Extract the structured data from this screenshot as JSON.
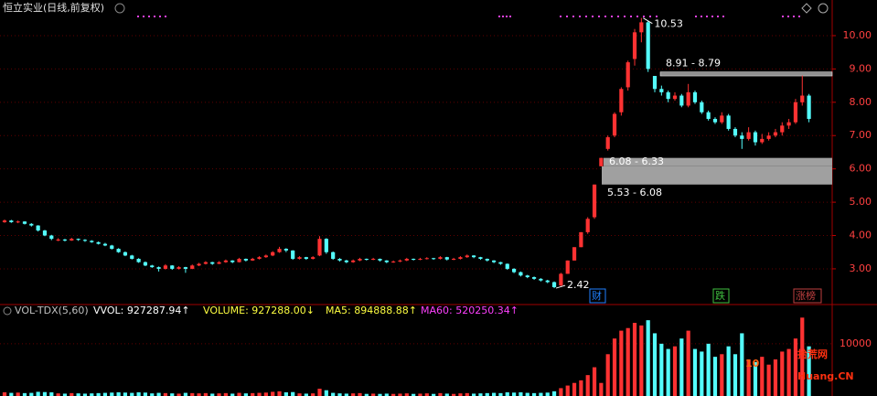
{
  "chart_data": {
    "type": "candlestick",
    "title": "恒立实业(日线,前复权)",
    "ylim": [
      2.01,
      11.07
    ],
    "yticks": [
      {
        "value": 3,
        "label": "3.00"
      },
      {
        "value": 4,
        "label": "4.00"
      },
      {
        "value": 5,
        "label": "5.00"
      },
      {
        "value": 6,
        "label": "6.00"
      },
      {
        "value": 7,
        "label": "7.00"
      },
      {
        "value": 8,
        "label": "8.00"
      },
      {
        "value": 9,
        "label": "9.00"
      },
      {
        "value": 10,
        "label": "10.00"
      }
    ],
    "grid": true,
    "up_color": "#ff3232",
    "down_color": "#54fcfc",
    "max_label": "10.53",
    "min_label": "2.42",
    "zones": [
      {
        "label": "8.91 - 8.79",
        "low": 8.79,
        "high": 8.91
      },
      {
        "label": "6.08 - 6.33",
        "low": 6.08,
        "high": 6.33
      },
      {
        "label": "5.53 - 6.08",
        "low": 5.53,
        "high": 6.08
      }
    ],
    "tags": [
      {
        "text": "财",
        "color": "#2080ff"
      },
      {
        "text": "跌",
        "color": "#40c040"
      },
      {
        "text": "涨榜",
        "color": "#c04040"
      }
    ],
    "candles": [
      [
        4.4,
        4.48,
        4.38,
        4.45
      ],
      [
        4.45,
        4.47,
        4.38,
        4.4
      ],
      [
        4.4,
        4.45,
        4.37,
        4.42
      ],
      [
        4.42,
        4.43,
        4.33,
        4.35
      ],
      [
        4.35,
        4.37,
        4.27,
        4.3
      ],
      [
        4.3,
        4.31,
        4.12,
        4.15
      ],
      [
        4.15,
        4.17,
        3.98,
        4.0
      ],
      [
        4.0,
        4.02,
        3.86,
        3.9
      ],
      [
        3.85,
        3.92,
        3.83,
        3.88
      ],
      [
        3.88,
        3.9,
        3.82,
        3.85
      ],
      [
        3.85,
        3.93,
        3.84,
        3.9
      ],
      [
        3.9,
        3.91,
        3.84,
        3.87
      ],
      [
        3.87,
        3.89,
        3.81,
        3.84
      ],
      [
        3.84,
        3.86,
        3.78,
        3.8
      ],
      [
        3.8,
        3.82,
        3.73,
        3.75
      ],
      [
        3.75,
        3.78,
        3.68,
        3.7
      ],
      [
        3.7,
        3.72,
        3.58,
        3.6
      ],
      [
        3.6,
        3.62,
        3.48,
        3.5
      ],
      [
        3.5,
        3.52,
        3.38,
        3.4
      ],
      [
        3.4,
        3.42,
        3.28,
        3.3
      ],
      [
        3.3,
        3.32,
        3.18,
        3.2
      ],
      [
        3.2,
        3.22,
        3.08,
        3.1
      ],
      [
        3.1,
        3.12,
        3.03,
        3.05
      ],
      [
        3.05,
        3.07,
        2.92,
        3.0
      ],
      [
        3.0,
        3.14,
        2.98,
        3.1
      ],
      [
        3.1,
        3.11,
        2.97,
        3.0
      ],
      [
        3.0,
        3.08,
        2.98,
        3.05
      ],
      [
        3.05,
        3.06,
        2.88,
        3.0
      ],
      [
        3.0,
        3.13,
        2.99,
        3.1
      ],
      [
        3.1,
        3.18,
        3.08,
        3.15
      ],
      [
        3.15,
        3.23,
        3.13,
        3.2
      ],
      [
        3.2,
        3.21,
        3.12,
        3.15
      ],
      [
        3.15,
        3.23,
        3.14,
        3.2
      ],
      [
        3.2,
        3.28,
        3.18,
        3.25
      ],
      [
        3.25,
        3.26,
        3.17,
        3.2
      ],
      [
        3.2,
        3.33,
        3.19,
        3.3
      ],
      [
        3.3,
        3.31,
        3.22,
        3.25
      ],
      [
        3.25,
        3.33,
        3.24,
        3.3
      ],
      [
        3.3,
        3.38,
        3.28,
        3.35
      ],
      [
        3.35,
        3.43,
        3.33,
        3.4
      ],
      [
        3.4,
        3.53,
        3.38,
        3.5
      ],
      [
        3.5,
        3.66,
        3.48,
        3.6
      ],
      [
        3.6,
        3.62,
        3.5,
        3.55
      ],
      [
        3.55,
        3.56,
        3.27,
        3.3
      ],
      [
        3.3,
        3.38,
        3.28,
        3.35
      ],
      [
        3.35,
        3.36,
        3.27,
        3.3
      ],
      [
        3.3,
        3.38,
        3.28,
        3.35
      ],
      [
        3.4,
        3.98,
        3.38,
        3.9
      ],
      [
        3.9,
        3.92,
        3.45,
        3.5
      ],
      [
        3.5,
        3.52,
        3.27,
        3.3
      ],
      [
        3.3,
        3.32,
        3.22,
        3.25
      ],
      [
        3.25,
        3.27,
        3.17,
        3.2
      ],
      [
        3.2,
        3.28,
        3.18,
        3.25
      ],
      [
        3.25,
        3.33,
        3.23,
        3.3
      ],
      [
        3.3,
        3.31,
        3.25,
        3.28
      ],
      [
        3.28,
        3.33,
        3.26,
        3.3
      ],
      [
        3.3,
        3.31,
        3.22,
        3.25
      ],
      [
        3.25,
        3.26,
        3.17,
        3.2
      ],
      [
        3.2,
        3.25,
        3.18,
        3.22
      ],
      [
        3.22,
        3.28,
        3.2,
        3.25
      ],
      [
        3.25,
        3.33,
        3.23,
        3.3
      ],
      [
        3.3,
        3.31,
        3.25,
        3.28
      ],
      [
        3.28,
        3.33,
        3.26,
        3.3
      ],
      [
        3.3,
        3.35,
        3.28,
        3.32
      ],
      [
        3.32,
        3.33,
        3.27,
        3.3
      ],
      [
        3.3,
        3.38,
        3.28,
        3.35
      ],
      [
        3.35,
        3.36,
        3.25,
        3.28
      ],
      [
        3.28,
        3.33,
        3.26,
        3.3
      ],
      [
        3.3,
        3.38,
        3.28,
        3.35
      ],
      [
        3.35,
        3.43,
        3.33,
        3.4
      ],
      [
        3.4,
        3.41,
        3.32,
        3.35
      ],
      [
        3.35,
        3.36,
        3.27,
        3.3
      ],
      [
        3.3,
        3.31,
        3.22,
        3.25
      ],
      [
        3.25,
        3.26,
        3.17,
        3.2
      ],
      [
        3.2,
        3.21,
        3.12,
        3.15
      ],
      [
        3.15,
        3.16,
        2.97,
        3.0
      ],
      [
        3.0,
        3.02,
        2.87,
        2.9
      ],
      [
        2.9,
        2.92,
        2.77,
        2.8
      ],
      [
        2.8,
        2.82,
        2.72,
        2.75
      ],
      [
        2.75,
        2.77,
        2.67,
        2.7
      ],
      [
        2.7,
        2.72,
        2.62,
        2.65
      ],
      [
        2.65,
        2.67,
        2.57,
        2.6
      ],
      [
        2.6,
        2.62,
        2.42,
        2.45
      ],
      [
        2.5,
        2.88,
        2.48,
        2.85
      ],
      [
        2.85,
        3.25,
        2.85,
        3.25
      ],
      [
        3.25,
        3.65,
        3.25,
        3.65
      ],
      [
        3.65,
        4.1,
        3.65,
        4.1
      ],
      [
        4.1,
        4.55,
        4.05,
        4.5
      ],
      [
        4.55,
        5.53,
        4.5,
        5.53
      ],
      [
        6.08,
        6.33,
        6.08,
        6.33
      ],
      [
        6.6,
        7.0,
        6.55,
        6.95
      ],
      [
        7.0,
        7.7,
        6.95,
        7.65
      ],
      [
        7.7,
        8.45,
        7.6,
        8.4
      ],
      [
        8.45,
        9.25,
        8.35,
        9.2
      ],
      [
        9.3,
        10.2,
        9.1,
        10.1
      ],
      [
        10.1,
        10.53,
        9.8,
        10.4
      ],
      [
        10.4,
        10.45,
        8.91,
        9.0
      ],
      [
        8.79,
        8.79,
        8.3,
        8.4
      ],
      [
        8.4,
        8.5,
        8.2,
        8.3
      ],
      [
        8.3,
        8.35,
        8.0,
        8.1
      ],
      [
        8.1,
        8.3,
        8.05,
        8.2
      ],
      [
        8.2,
        8.25,
        7.85,
        7.9
      ],
      [
        7.9,
        8.55,
        7.85,
        8.3
      ],
      [
        8.3,
        8.35,
        7.95,
        8.0
      ],
      [
        8.0,
        8.05,
        7.65,
        7.7
      ],
      [
        7.7,
        7.75,
        7.45,
        7.5
      ],
      [
        7.5,
        7.55,
        7.35,
        7.4
      ],
      [
        7.4,
        7.7,
        7.35,
        7.6
      ],
      [
        7.6,
        7.65,
        7.15,
        7.2
      ],
      [
        7.2,
        7.25,
        6.95,
        7.0
      ],
      [
        7.0,
        7.1,
        6.6,
        6.9
      ],
      [
        6.9,
        7.25,
        6.85,
        7.1
      ],
      [
        7.1,
        7.15,
        6.7,
        6.8
      ],
      [
        6.8,
        7.05,
        6.75,
        6.9
      ],
      [
        6.9,
        7.1,
        6.85,
        7.0
      ],
      [
        7.0,
        7.2,
        6.95,
        7.1
      ],
      [
        7.1,
        7.4,
        7.0,
        7.3
      ],
      [
        7.3,
        7.5,
        7.2,
        7.4
      ],
      [
        7.4,
        8.1,
        7.35,
        8.0
      ],
      [
        8.0,
        8.8,
        7.9,
        8.2
      ],
      [
        8.2,
        8.25,
        7.4,
        7.5
      ]
    ],
    "volume": [
      700,
      600,
      650,
      550,
      600,
      800,
      750,
      700,
      500,
      450,
      550,
      500,
      450,
      500,
      550,
      600,
      650,
      700,
      650,
      600,
      700,
      650,
      500,
      600,
      550,
      500,
      450,
      600,
      550,
      500,
      550,
      450,
      500,
      550,
      450,
      600,
      500,
      550,
      600,
      650,
      800,
      900,
      700,
      750,
      500,
      450,
      500,
      1400,
      1100,
      600,
      500,
      450,
      500,
      550,
      400,
      450,
      400,
      450,
      400,
      450,
      500,
      400,
      450,
      500,
      400,
      550,
      450,
      400,
      500,
      550,
      450,
      500,
      550,
      600,
      550,
      700,
      650,
      700,
      600,
      550,
      600,
      650,
      900,
      1500,
      2000,
      2500,
      3000,
      4000,
      5500,
      2500,
      8000,
      11000,
      12500,
      13000,
      14000,
      13500,
      14500,
      12000,
      10000,
      9000,
      9500,
      11000,
      12500,
      9000,
      8500,
      10000,
      7500,
      8000,
      9500,
      8000,
      12000,
      7000,
      6500,
      7500,
      6000,
      7000,
      8500,
      9000,
      11000,
      15000,
      9500
    ],
    "vlim": [
      0,
      15400
    ],
    "vticks": [
      10000
    ],
    "indicator": [
      {
        "text": "VOL-TDX(5,60)",
        "color": "#c0c0c0"
      },
      {
        "text": "VVOL: 927287.94↑",
        "color": "#ffffff"
      },
      {
        "text": "VOLUME: 927288.00↓",
        "color": "#ffff40"
      },
      {
        "text": "MA5: 894888.88↑",
        "color": "#ffff40"
      },
      {
        "text": "MA60: 520250.34↑",
        "color": "#ff40ff"
      }
    ],
    "watermark": {
      "number": "10",
      "name": "拾荒网",
      "site": "Huang.CN"
    }
  }
}
